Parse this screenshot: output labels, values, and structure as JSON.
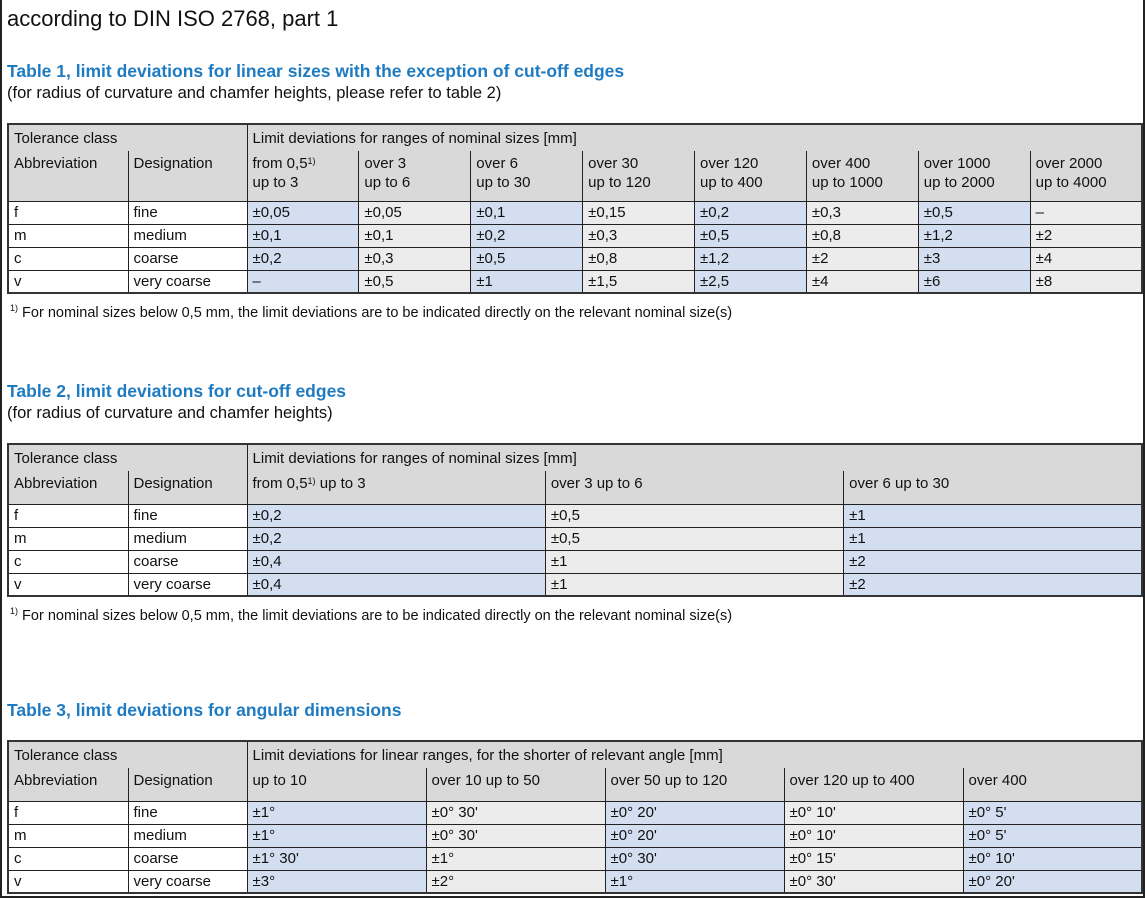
{
  "title": "according to DIN ISO 2768, part 1",
  "colors": {
    "heading": "#1f7bc1",
    "header_bg": "#d9d9d9",
    "col_blue": "#d3def0",
    "col_gray": "#ececec"
  },
  "tables": [
    {
      "heading": "Table 1, limit deviations for linear sizes with the exception of cut-off edges",
      "subtitle": "(for radius of curvature and chamfer heights, please refer to table 2)",
      "group_left": "Tolerance class",
      "group_right": "Limit deviations for ranges of nominal sizes [mm]",
      "col_abbr": "Abbreviation",
      "col_desig": "Designation",
      "columns": [
        {
          "pre": "from 0,5",
          "sup": "1)",
          "post": "\nup to 3"
        },
        {
          "pre": "over 3\nup to 6"
        },
        {
          "pre": "over 6\nup to 30"
        },
        {
          "pre": "over 30\nup to 120"
        },
        {
          "pre": "over 120\nup to 400"
        },
        {
          "pre": "over 400\nup to 1000"
        },
        {
          "pre": "over 1000\nup to 2000"
        },
        {
          "pre": "over 2000\nup to 4000"
        }
      ],
      "rows": [
        {
          "abbr": "f",
          "desig": "fine",
          "values": [
            "±0,05",
            "±0,05",
            "±0,1",
            "±0,15",
            "±0,2",
            "±0,3",
            "±0,5",
            "–"
          ]
        },
        {
          "abbr": "m",
          "desig": "medium",
          "values": [
            "±0,1",
            "±0,1",
            "±0,2",
            "±0,3",
            "±0,5",
            "±0,8",
            "±1,2",
            "±2"
          ]
        },
        {
          "abbr": "c",
          "desig": "coarse",
          "values": [
            "±0,2",
            "±0,3",
            "±0,5",
            "±0,8",
            "±1,2",
            "±2",
            "±3",
            "±4"
          ]
        },
        {
          "abbr": "v",
          "desig": "very coarse",
          "values": [
            "–",
            "±0,5",
            "±1",
            "±1,5",
            "±2,5",
            "±4",
            "±6",
            "±8"
          ]
        }
      ],
      "footnote": {
        "sup": "1)",
        "text": " For nominal sizes below 0,5 mm, the limit deviations are to be indicated directly on the relevant nominal size(s)"
      }
    },
    {
      "heading": "Table 2, limit deviations for cut-off edges",
      "subtitle": "(for radius of curvature and chamfer heights)",
      "group_left": "Tolerance class",
      "group_right": "Limit deviations for ranges of nominal sizes [mm]",
      "col_abbr": "Abbreviation",
      "col_desig": "Designation",
      "columns": [
        {
          "pre": "from 0,5",
          "sup": "1)",
          "post": " up to 3"
        },
        {
          "pre": "over 3 up to 6"
        },
        {
          "pre": "over 6 up to 30"
        }
      ],
      "rows": [
        {
          "abbr": "f",
          "desig": "fine",
          "values": [
            "±0,2",
            "±0,5",
            "±1"
          ]
        },
        {
          "abbr": "m",
          "desig": "medium",
          "values": [
            "±0,2",
            "±0,5",
            "±1"
          ]
        },
        {
          "abbr": "c",
          "desig": "coarse",
          "values": [
            "±0,4",
            "±1",
            "±2"
          ]
        },
        {
          "abbr": "v",
          "desig": "very coarse",
          "values": [
            "±0,4",
            "±1",
            "±2"
          ]
        }
      ],
      "footnote": {
        "sup": "1)",
        "text": " For nominal sizes below 0,5 mm, the limit deviations are to be indicated directly on the relevant nominal size(s)"
      }
    },
    {
      "heading": "Table 3, limit deviations for angular dimensions",
      "group_left": "Tolerance class",
      "group_right": "Limit deviations for linear ranges, for the shorter of relevant angle [mm]",
      "col_abbr": "Abbreviation",
      "col_desig": "Designation",
      "columns": [
        {
          "pre": "up to 10"
        },
        {
          "pre": "over 10 up to 50"
        },
        {
          "pre": "over 50 up to 120"
        },
        {
          "pre": "over 120 up to 400"
        },
        {
          "pre": "over 400"
        }
      ],
      "rows": [
        {
          "abbr": "f",
          "desig": "fine",
          "values": [
            "±1°",
            "±0° 30'",
            "±0° 20'",
            "±0° 10'",
            "±0° 5'"
          ]
        },
        {
          "abbr": "m",
          "desig": "medium",
          "values": [
            "±1°",
            "±0° 30'",
            "±0° 20'",
            "±0° 10'",
            "±0° 5'"
          ]
        },
        {
          "abbr": "c",
          "desig": "coarse",
          "values": [
            "±1° 30'",
            "±1°",
            "±0° 30'",
            "±0° 15'",
            "±0° 10'"
          ]
        },
        {
          "abbr": "v",
          "desig": "very coarse",
          "values": [
            "±3°",
            "±2°",
            "±1°",
            "±0° 30'",
            "±0° 20'"
          ]
        }
      ]
    }
  ]
}
